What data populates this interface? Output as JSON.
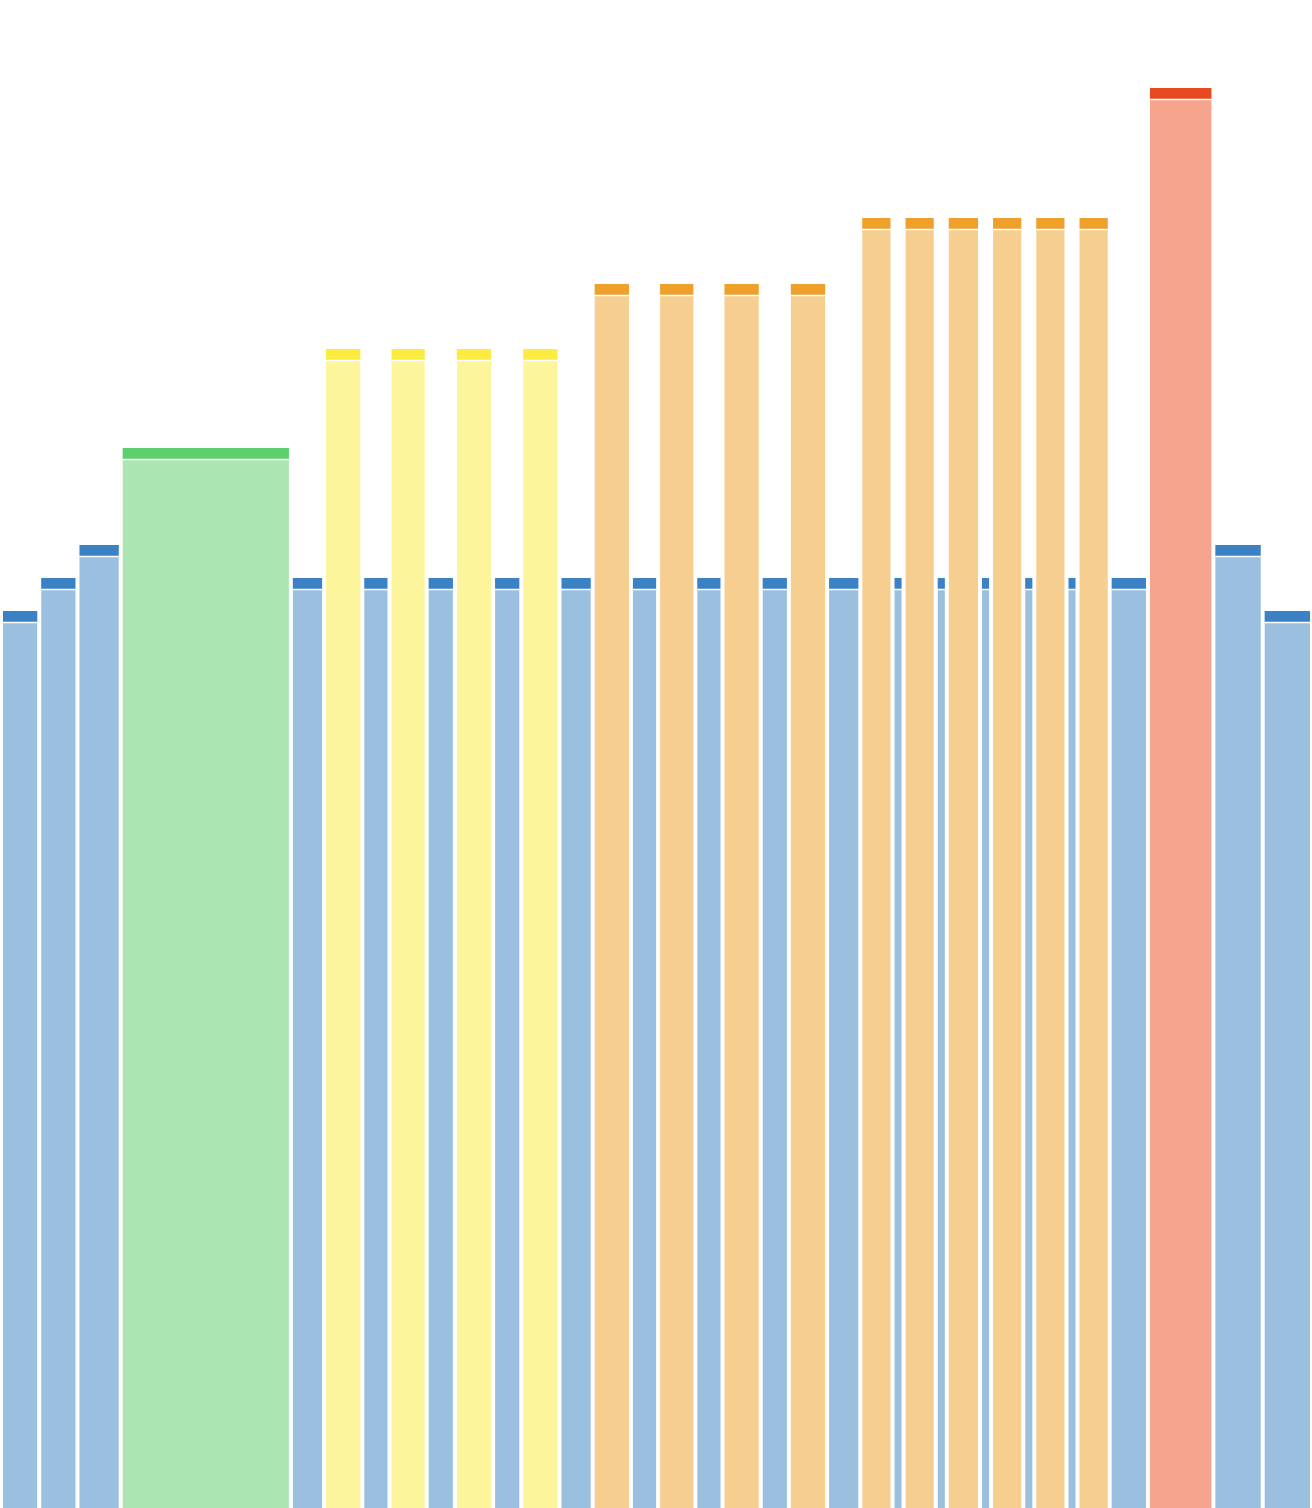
{
  "chart_data": {
    "type": "bar",
    "categories": [
      null,
      null,
      null,
      null,
      null,
      null,
      null,
      null,
      null,
      null,
      null,
      null,
      null,
      null,
      null,
      null,
      null,
      null,
      null,
      null,
      null,
      null,
      null,
      null,
      null,
      null,
      null,
      null,
      null,
      null,
      null,
      null,
      null,
      null,
      null,
      null
    ],
    "values": [
      897,
      930,
      963,
      1060,
      930,
      1159,
      930,
      1159,
      930,
      1159,
      930,
      1159,
      930,
      1224,
      930,
      1224,
      930,
      1224,
      930,
      1224,
      930,
      1290,
      930,
      1290,
      930,
      1290,
      930,
      1290,
      930,
      1290,
      930,
      1290,
      930,
      1420,
      963,
      897
    ],
    "widths": [
      34,
      34,
      39,
      165,
      29,
      34,
      23,
      33,
      24,
      34,
      24,
      34,
      29,
      34,
      23,
      33,
      23,
      34,
      24,
      34,
      29,
      28,
      7,
      28,
      7,
      29,
      7,
      28,
      7,
      28,
      7,
      28,
      34,
      61,
      45,
      45
    ],
    "colors": [
      "#9bbfdf",
      "#9bbfdf",
      "#9bbfdf",
      "#abe6b2",
      "#9bbfdf",
      "#fdf59b",
      "#9bbfdf",
      "#fdf59b",
      "#9bbfdf",
      "#fdf59b",
      "#9bbfdf",
      "#fdf59b",
      "#9bbfdf",
      "#f6cf90",
      "#9bbfdf",
      "#f6cf90",
      "#9bbfdf",
      "#f6cf90",
      "#9bbfdf",
      "#f6cf90",
      "#9bbfdf",
      "#f6cf90",
      "#9bbfdf",
      "#f6cf90",
      "#9bbfdf",
      "#f6cf90",
      "#9bbfdf",
      "#f6cf90",
      "#9bbfdf",
      "#f6cf90",
      "#9bbfdf",
      "#f6cf90",
      "#9bbfdf",
      "#f7a48f",
      "#9bbfdf",
      "#9bbfdf"
    ],
    "cap_colors": [
      "#3a82c4",
      "#3a82c4",
      "#3a82c4",
      "#5ccf6e",
      "#3a82c4",
      "#fcec3f",
      "#3a82c4",
      "#fcec3f",
      "#3a82c4",
      "#fcec3f",
      "#3a82c4",
      "#fcec3f",
      "#3a82c4",
      "#eea02a",
      "#3a82c4",
      "#eea02a",
      "#3a82c4",
      "#eea02a",
      "#3a82c4",
      "#eea02a",
      "#3a82c4",
      "#eea02a",
      "#3a82c4",
      "#eea02a",
      "#3a82c4",
      "#eea02a",
      "#3a82c4",
      "#eea02a",
      "#3a82c4",
      "#eea02a",
      "#3a82c4",
      "#eea02a",
      "#3a82c4",
      "#e8481f",
      "#3a82c4",
      "#3a82c4"
    ],
    "ylim": [
      0,
      1508
    ]
  }
}
